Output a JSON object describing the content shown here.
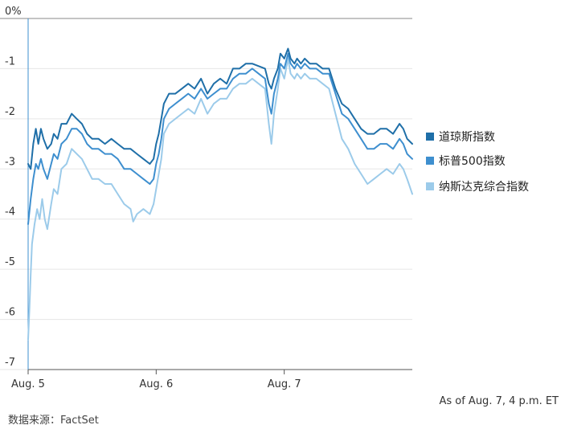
{
  "chart_data": {
    "type": "line",
    "title": "",
    "xlabel": "",
    "ylabel": "",
    "x_range": [
      0,
      3
    ],
    "ylim": [
      -7,
      0
    ],
    "y_ticks": [
      {
        "value": 0,
        "label": "0%"
      },
      {
        "value": -1,
        "label": "-1"
      },
      {
        "value": -2,
        "label": "-2"
      },
      {
        "value": -3,
        "label": "-3"
      },
      {
        "value": -4,
        "label": "-4"
      },
      {
        "value": -5,
        "label": "-5"
      },
      {
        "value": -6,
        "label": "-6"
      },
      {
        "value": -7,
        "label": "-7"
      }
    ],
    "x_ticks": [
      {
        "value": 0,
        "label": "Aug. 5"
      },
      {
        "value": 1,
        "label": "Aug. 6"
      },
      {
        "value": 2,
        "label": "Aug. 7"
      }
    ],
    "grid": true,
    "legend_position": "right",
    "series": [
      {
        "name": "道琼斯指数",
        "color": "#1f6fa8",
        "points": [
          [
            0,
            -2.9
          ],
          [
            0.02,
            -3.0
          ],
          [
            0.04,
            -2.5
          ],
          [
            0.06,
            -2.2
          ],
          [
            0.08,
            -2.5
          ],
          [
            0.1,
            -2.2
          ],
          [
            0.12,
            -2.4
          ],
          [
            0.15,
            -2.6
          ],
          [
            0.18,
            -2.5
          ],
          [
            0.2,
            -2.3
          ],
          [
            0.23,
            -2.4
          ],
          [
            0.26,
            -2.1
          ],
          [
            0.3,
            -2.1
          ],
          [
            0.34,
            -1.9
          ],
          [
            0.38,
            -2.0
          ],
          [
            0.42,
            -2.1
          ],
          [
            0.46,
            -2.3
          ],
          [
            0.5,
            -2.4
          ],
          [
            0.55,
            -2.4
          ],
          [
            0.6,
            -2.5
          ],
          [
            0.65,
            -2.4
          ],
          [
            0.7,
            -2.5
          ],
          [
            0.75,
            -2.6
          ],
          [
            0.8,
            -2.6
          ],
          [
            0.85,
            -2.7
          ],
          [
            0.9,
            -2.8
          ],
          [
            0.95,
            -2.9
          ],
          [
            0.98,
            -2.8
          ],
          [
            1.0,
            -2.5
          ],
          [
            1.02,
            -2.3
          ],
          [
            1.04,
            -2.0
          ],
          [
            1.06,
            -1.7
          ],
          [
            1.1,
            -1.5
          ],
          [
            1.15,
            -1.5
          ],
          [
            1.2,
            -1.4
          ],
          [
            1.25,
            -1.3
          ],
          [
            1.3,
            -1.4
          ],
          [
            1.35,
            -1.2
          ],
          [
            1.4,
            -1.5
          ],
          [
            1.45,
            -1.3
          ],
          [
            1.5,
            -1.2
          ],
          [
            1.55,
            -1.3
          ],
          [
            1.6,
            -1.0
          ],
          [
            1.65,
            -1.0
          ],
          [
            1.7,
            -0.9
          ],
          [
            1.75,
            -0.9
          ],
          [
            1.8,
            -0.95
          ],
          [
            1.85,
            -1.0
          ],
          [
            1.88,
            -1.3
          ],
          [
            1.9,
            -1.4
          ],
          [
            1.92,
            -1.2
          ],
          [
            1.95,
            -1.0
          ],
          [
            1.97,
            -0.7
          ],
          [
            2.0,
            -0.8
          ],
          [
            2.03,
            -0.6
          ],
          [
            2.05,
            -0.8
          ],
          [
            2.08,
            -0.9
          ],
          [
            2.1,
            -0.8
          ],
          [
            2.13,
            -0.9
          ],
          [
            2.16,
            -0.8
          ],
          [
            2.2,
            -0.9
          ],
          [
            2.25,
            -0.9
          ],
          [
            2.3,
            -1.0
          ],
          [
            2.35,
            -1.0
          ],
          [
            2.4,
            -1.4
          ],
          [
            2.45,
            -1.7
          ],
          [
            2.5,
            -1.8
          ],
          [
            2.55,
            -2.0
          ],
          [
            2.6,
            -2.2
          ],
          [
            2.65,
            -2.3
          ],
          [
            2.7,
            -2.3
          ],
          [
            2.75,
            -2.2
          ],
          [
            2.8,
            -2.2
          ],
          [
            2.85,
            -2.3
          ],
          [
            2.9,
            -2.1
          ],
          [
            2.93,
            -2.2
          ],
          [
            2.96,
            -2.4
          ],
          [
            3.0,
            -2.5
          ]
        ]
      },
      {
        "name": "标普500指数",
        "color": "#3e8fcf",
        "points": [
          [
            0,
            -4.1
          ],
          [
            0.02,
            -3.6
          ],
          [
            0.04,
            -3.2
          ],
          [
            0.06,
            -2.9
          ],
          [
            0.08,
            -3.0
          ],
          [
            0.1,
            -2.8
          ],
          [
            0.12,
            -3.0
          ],
          [
            0.15,
            -3.2
          ],
          [
            0.18,
            -2.9
          ],
          [
            0.2,
            -2.7
          ],
          [
            0.23,
            -2.8
          ],
          [
            0.26,
            -2.5
          ],
          [
            0.3,
            -2.4
          ],
          [
            0.34,
            -2.2
          ],
          [
            0.38,
            -2.2
          ],
          [
            0.42,
            -2.3
          ],
          [
            0.46,
            -2.5
          ],
          [
            0.5,
            -2.6
          ],
          [
            0.55,
            -2.6
          ],
          [
            0.6,
            -2.7
          ],
          [
            0.65,
            -2.7
          ],
          [
            0.7,
            -2.8
          ],
          [
            0.75,
            -3.0
          ],
          [
            0.8,
            -3.0
          ],
          [
            0.85,
            -3.1
          ],
          [
            0.9,
            -3.2
          ],
          [
            0.95,
            -3.3
          ],
          [
            0.98,
            -3.2
          ],
          [
            1.0,
            -2.9
          ],
          [
            1.02,
            -2.7
          ],
          [
            1.04,
            -2.4
          ],
          [
            1.06,
            -2.0
          ],
          [
            1.1,
            -1.8
          ],
          [
            1.15,
            -1.7
          ],
          [
            1.2,
            -1.6
          ],
          [
            1.25,
            -1.5
          ],
          [
            1.3,
            -1.6
          ],
          [
            1.35,
            -1.4
          ],
          [
            1.4,
            -1.6
          ],
          [
            1.45,
            -1.5
          ],
          [
            1.5,
            -1.4
          ],
          [
            1.55,
            -1.4
          ],
          [
            1.6,
            -1.2
          ],
          [
            1.65,
            -1.1
          ],
          [
            1.7,
            -1.1
          ],
          [
            1.75,
            -1.0
          ],
          [
            1.8,
            -1.1
          ],
          [
            1.85,
            -1.2
          ],
          [
            1.88,
            -1.7
          ],
          [
            1.9,
            -1.9
          ],
          [
            1.92,
            -1.5
          ],
          [
            1.95,
            -1.2
          ],
          [
            1.97,
            -0.9
          ],
          [
            2.0,
            -1.0
          ],
          [
            2.03,
            -0.7
          ],
          [
            2.05,
            -0.9
          ],
          [
            2.08,
            -1.0
          ],
          [
            2.1,
            -0.9
          ],
          [
            2.13,
            -1.0
          ],
          [
            2.16,
            -0.9
          ],
          [
            2.2,
            -1.0
          ],
          [
            2.25,
            -1.0
          ],
          [
            2.3,
            -1.1
          ],
          [
            2.35,
            -1.1
          ],
          [
            2.4,
            -1.5
          ],
          [
            2.45,
            -1.9
          ],
          [
            2.5,
            -2.0
          ],
          [
            2.55,
            -2.2
          ],
          [
            2.6,
            -2.4
          ],
          [
            2.65,
            -2.6
          ],
          [
            2.7,
            -2.6
          ],
          [
            2.75,
            -2.5
          ],
          [
            2.8,
            -2.5
          ],
          [
            2.85,
            -2.6
          ],
          [
            2.9,
            -2.4
          ],
          [
            2.93,
            -2.5
          ],
          [
            2.96,
            -2.7
          ],
          [
            3.0,
            -2.8
          ]
        ]
      },
      {
        "name": "纳斯达克综合指数",
        "color": "#9ccbea",
        "points": [
          [
            0,
            -6.4
          ],
          [
            0.01,
            -5.8
          ],
          [
            0.02,
            -5.1
          ],
          [
            0.03,
            -4.5
          ],
          [
            0.05,
            -4.1
          ],
          [
            0.07,
            -3.8
          ],
          [
            0.09,
            -4.0
          ],
          [
            0.11,
            -3.6
          ],
          [
            0.13,
            -4.0
          ],
          [
            0.15,
            -4.2
          ],
          [
            0.18,
            -3.7
          ],
          [
            0.2,
            -3.4
          ],
          [
            0.23,
            -3.5
          ],
          [
            0.26,
            -3.0
          ],
          [
            0.3,
            -2.9
          ],
          [
            0.34,
            -2.6
          ],
          [
            0.38,
            -2.7
          ],
          [
            0.42,
            -2.8
          ],
          [
            0.46,
            -3.0
          ],
          [
            0.5,
            -3.2
          ],
          [
            0.55,
            -3.2
          ],
          [
            0.6,
            -3.3
          ],
          [
            0.65,
            -3.3
          ],
          [
            0.7,
            -3.5
          ],
          [
            0.75,
            -3.7
          ],
          [
            0.8,
            -3.8
          ],
          [
            0.82,
            -4.05
          ],
          [
            0.85,
            -3.9
          ],
          [
            0.9,
            -3.8
          ],
          [
            0.95,
            -3.9
          ],
          [
            0.98,
            -3.7
          ],
          [
            1.0,
            -3.4
          ],
          [
            1.02,
            -3.1
          ],
          [
            1.04,
            -2.8
          ],
          [
            1.06,
            -2.3
          ],
          [
            1.1,
            -2.1
          ],
          [
            1.15,
            -2.0
          ],
          [
            1.2,
            -1.9
          ],
          [
            1.25,
            -1.8
          ],
          [
            1.3,
            -1.9
          ],
          [
            1.35,
            -1.6
          ],
          [
            1.4,
            -1.9
          ],
          [
            1.45,
            -1.7
          ],
          [
            1.5,
            -1.6
          ],
          [
            1.55,
            -1.6
          ],
          [
            1.6,
            -1.4
          ],
          [
            1.65,
            -1.3
          ],
          [
            1.7,
            -1.3
          ],
          [
            1.75,
            -1.2
          ],
          [
            1.8,
            -1.3
          ],
          [
            1.85,
            -1.4
          ],
          [
            1.88,
            -2.1
          ],
          [
            1.9,
            -2.5
          ],
          [
            1.92,
            -1.9
          ],
          [
            1.95,
            -1.4
          ],
          [
            1.97,
            -1.0
          ],
          [
            2.0,
            -1.2
          ],
          [
            2.03,
            -0.8
          ],
          [
            2.05,
            -1.1
          ],
          [
            2.08,
            -1.2
          ],
          [
            2.1,
            -1.1
          ],
          [
            2.13,
            -1.2
          ],
          [
            2.16,
            -1.1
          ],
          [
            2.2,
            -1.2
          ],
          [
            2.25,
            -1.2
          ],
          [
            2.3,
            -1.3
          ],
          [
            2.35,
            -1.4
          ],
          [
            2.4,
            -1.9
          ],
          [
            2.45,
            -2.4
          ],
          [
            2.5,
            -2.6
          ],
          [
            2.55,
            -2.9
          ],
          [
            2.6,
            -3.1
          ],
          [
            2.65,
            -3.3
          ],
          [
            2.7,
            -3.2
          ],
          [
            2.75,
            -3.1
          ],
          [
            2.8,
            -3.0
          ],
          [
            2.85,
            -3.1
          ],
          [
            2.9,
            -2.9
          ],
          [
            2.93,
            -3.0
          ],
          [
            2.96,
            -3.2
          ],
          [
            3.0,
            -3.5
          ]
        ]
      }
    ]
  },
  "legend": {
    "items": [
      "道琼斯指数",
      "标普500指数",
      "纳斯达克综合指数"
    ]
  },
  "note": "As of Aug. 7, 4 p.m. ET",
  "source": "数据来源：FactSet"
}
